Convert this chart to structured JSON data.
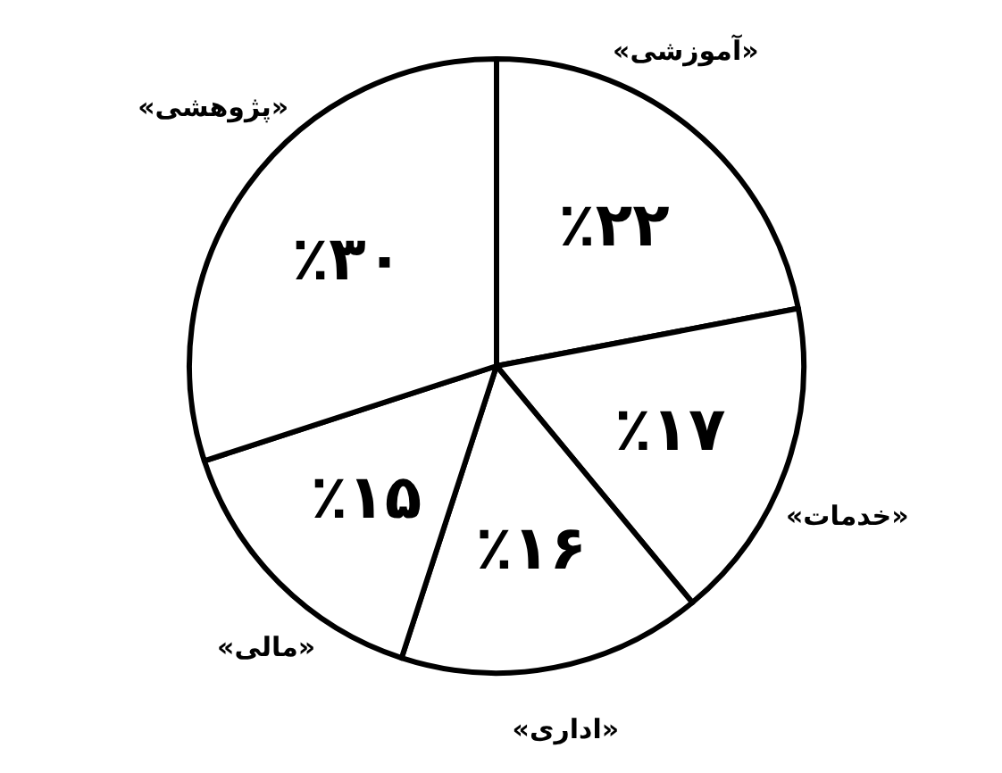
{
  "chart_data": {
    "type": "pie",
    "categories": [
      "«آموزشی»",
      "«خدمات»",
      "«اداری»",
      "«مالی»",
      "«پژوهشی»"
    ],
    "values": [
      22,
      17,
      16,
      15,
      30
    ],
    "value_labels": [
      "٪۲۲",
      "٪۱۷",
      "٪۱۶",
      "٪۱۵",
      "٪۳۰"
    ],
    "colors": [
      "#ffffff",
      "#ffffff",
      "#ffffff",
      "#ffffff",
      "#ffffff"
    ]
  }
}
